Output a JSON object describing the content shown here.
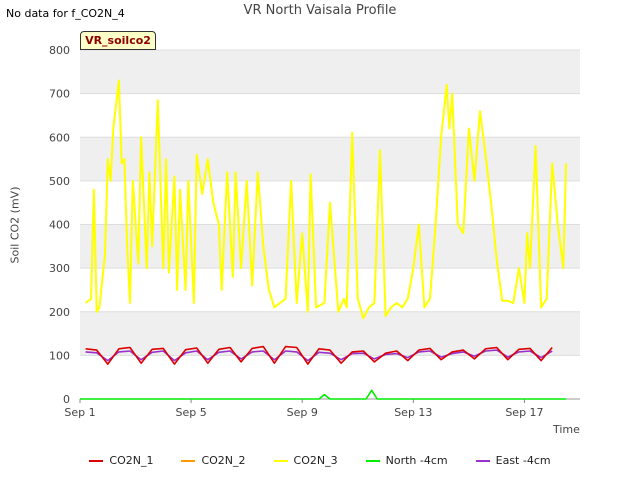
{
  "header": {
    "no_data_msg": "No data for f_CO2N_4",
    "tag_label": "VR_soilco2"
  },
  "chart_data": {
    "type": "line",
    "title": "VR North Vaisala Profile",
    "xlabel": "Time",
    "ylabel": "Soil CO2 (mV)",
    "xlim": [
      0,
      18
    ],
    "ylim": [
      0,
      800
    ],
    "x_ticks": [
      {
        "x": 0,
        "label": "Sep 1"
      },
      {
        "x": 4,
        "label": "Sep 5"
      },
      {
        "x": 8,
        "label": "Sep 9"
      },
      {
        "x": 12,
        "label": "Sep 13"
      },
      {
        "x": 16,
        "label": "Sep 17"
      }
    ],
    "y_ticks": [
      0,
      100,
      200,
      300,
      400,
      500,
      600,
      700,
      800
    ],
    "legend_position": "bottom",
    "series": [
      {
        "name": "CO2N_1",
        "color": "#dd0000",
        "x": [
          0.2,
          0.6,
          1.0,
          1.4,
          1.8,
          2.2,
          2.6,
          3.0,
          3.4,
          3.8,
          4.2,
          4.6,
          5.0,
          5.4,
          5.8,
          6.2,
          6.6,
          7.0,
          7.4,
          7.8,
          8.2,
          8.6,
          9.0,
          9.4,
          9.8,
          10.2,
          10.6,
          11.0,
          11.4,
          11.8,
          12.2,
          12.6,
          13.0,
          13.4,
          13.8,
          14.2,
          14.6,
          15.0,
          15.4,
          15.8,
          16.2,
          16.6,
          17.0
        ],
        "y": [
          115,
          112,
          80,
          115,
          118,
          82,
          114,
          116,
          80,
          113,
          117,
          82,
          114,
          118,
          85,
          116,
          120,
          82,
          120,
          118,
          80,
          115,
          112,
          82,
          108,
          110,
          85,
          105,
          110,
          88,
          112,
          116,
          90,
          108,
          112,
          92,
          115,
          118,
          90,
          114,
          116,
          88,
          118
        ]
      },
      {
        "name": "CO2N_2",
        "color": "#ff9900",
        "x": [],
        "y": []
      },
      {
        "name": "CO2N_3",
        "color": "#ffff00",
        "x": [
          0.2,
          0.4,
          0.5,
          0.6,
          0.7,
          0.9,
          1.0,
          1.1,
          1.2,
          1.4,
          1.5,
          1.6,
          1.7,
          1.8,
          1.9,
          2.1,
          2.2,
          2.4,
          2.5,
          2.6,
          2.8,
          3.0,
          3.1,
          3.2,
          3.4,
          3.5,
          3.6,
          3.8,
          3.9,
          4.1,
          4.2,
          4.4,
          4.6,
          4.8,
          5.0,
          5.1,
          5.3,
          5.5,
          5.6,
          5.8,
          6.0,
          6.2,
          6.4,
          6.6,
          6.8,
          7.0,
          7.2,
          7.4,
          7.6,
          7.8,
          8.0,
          8.2,
          8.3,
          8.5,
          8.8,
          9.0,
          9.3,
          9.5,
          9.6,
          9.8,
          10.0,
          10.2,
          10.4,
          10.6,
          10.8,
          11.0,
          11.2,
          11.4,
          11.6,
          11.8,
          12.0,
          12.2,
          12.4,
          12.6,
          12.8,
          13.0,
          13.2,
          13.3,
          13.4,
          13.6,
          13.8,
          14.0,
          14.2,
          14.4,
          14.6,
          14.8,
          15.0,
          15.2,
          15.4,
          15.6,
          15.8,
          16.0,
          16.1,
          16.2,
          16.4,
          16.6,
          16.8,
          17.0,
          17.2,
          17.4,
          17.5
        ],
        "y": [
          220,
          230,
          480,
          200,
          210,
          330,
          550,
          500,
          620,
          730,
          540,
          550,
          350,
          220,
          500,
          310,
          600,
          300,
          520,
          350,
          685,
          300,
          550,
          290,
          510,
          250,
          480,
          250,
          500,
          220,
          560,
          470,
          550,
          450,
          400,
          250,
          520,
          280,
          520,
          300,
          500,
          260,
          520,
          350,
          250,
          210,
          220,
          230,
          500,
          220,
          380,
          200,
          515,
          210,
          220,
          450,
          200,
          230,
          210,
          610,
          230,
          185,
          210,
          220,
          570,
          190,
          210,
          220,
          210,
          230,
          300,
          400,
          210,
          230,
          400,
          600,
          720,
          620,
          700,
          400,
          380,
          620,
          500,
          660,
          560,
          450,
          320,
          225,
          225,
          220,
          300,
          220,
          380,
          300,
          580,
          210,
          230,
          540,
          400,
          300,
          540
        ]
      },
      {
        "name": "North -4cm",
        "color": "#00ee00",
        "x": [
          0,
          7.5,
          7.7,
          7.9,
          8.2,
          8.6,
          8.8,
          9.0,
          9.5,
          9.9,
          10.3,
          10.5,
          10.7,
          10.9,
          11.5,
          11.9,
          12.5,
          13.5,
          15.0,
          16.5,
          17.5
        ],
        "y": [
          0,
          0,
          0,
          0,
          0,
          0,
          10,
          0,
          0,
          0,
          0,
          20,
          0,
          0,
          0,
          0,
          0,
          0,
          0,
          0,
          0
        ]
      },
      {
        "name": "East -4cm",
        "color": "#9932cc",
        "x": [
          0.2,
          0.6,
          1.0,
          1.4,
          1.8,
          2.2,
          2.6,
          3.0,
          3.4,
          3.8,
          4.2,
          4.6,
          5.0,
          5.4,
          5.8,
          6.2,
          6.6,
          7.0,
          7.4,
          7.8,
          8.2,
          8.6,
          9.0,
          9.4,
          9.8,
          10.2,
          10.6,
          11.0,
          11.4,
          11.8,
          12.2,
          12.6,
          13.0,
          13.4,
          13.8,
          14.2,
          14.6,
          15.0,
          15.4,
          15.8,
          16.2,
          16.6,
          17.0
        ],
        "y": [
          108,
          106,
          88,
          108,
          110,
          90,
          107,
          110,
          88,
          106,
          110,
          90,
          107,
          110,
          92,
          108,
          110,
          90,
          110,
          108,
          88,
          107,
          105,
          90,
          104,
          105,
          92,
          102,
          104,
          95,
          108,
          110,
          96,
          104,
          108,
          98,
          110,
          112,
          96,
          108,
          110,
          95,
          110
        ]
      }
    ]
  }
}
